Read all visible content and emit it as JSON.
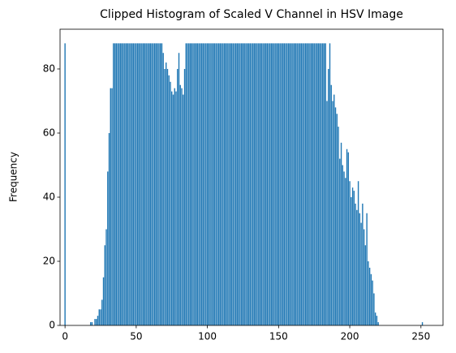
{
  "chart_data": {
    "type": "bar",
    "title": "Clipped Histogram of Scaled V Channel in HSV Image",
    "ylabel": "Frequency",
    "color": "#1f77b4",
    "bar_width": 0.8,
    "xlim": [
      -3.5,
      265.5
    ],
    "ylim": [
      0,
      92.4
    ],
    "xticks": [
      0,
      50,
      100,
      150,
      200,
      250
    ],
    "yticks": [
      0,
      20,
      40,
      60,
      80
    ],
    "x": [
      0,
      1,
      2,
      3,
      4,
      5,
      6,
      7,
      8,
      9,
      10,
      11,
      12,
      13,
      14,
      15,
      16,
      17,
      18,
      19,
      20,
      21,
      22,
      23,
      24,
      25,
      26,
      27,
      28,
      29,
      30,
      31,
      32,
      33,
      34,
      35,
      36,
      37,
      38,
      39,
      40,
      41,
      42,
      43,
      44,
      45,
      46,
      47,
      48,
      49,
      50,
      51,
      52,
      53,
      54,
      55,
      56,
      57,
      58,
      59,
      60,
      61,
      62,
      63,
      64,
      65,
      66,
      67,
      68,
      69,
      70,
      71,
      72,
      73,
      74,
      75,
      76,
      77,
      78,
      79,
      80,
      81,
      82,
      83,
      84,
      85,
      86,
      87,
      88,
      89,
      90,
      91,
      92,
      93,
      94,
      95,
      96,
      97,
      98,
      99,
      100,
      101,
      102,
      103,
      104,
      105,
      106,
      107,
      108,
      109,
      110,
      111,
      112,
      113,
      114,
      115,
      116,
      117,
      118,
      119,
      120,
      121,
      122,
      123,
      124,
      125,
      126,
      127,
      128,
      129,
      130,
      131,
      132,
      133,
      134,
      135,
      136,
      137,
      138,
      139,
      140,
      141,
      142,
      143,
      144,
      145,
      146,
      147,
      148,
      149,
      150,
      151,
      152,
      153,
      154,
      155,
      156,
      157,
      158,
      159,
      160,
      161,
      162,
      163,
      164,
      165,
      166,
      167,
      168,
      169,
      170,
      171,
      172,
      173,
      174,
      175,
      176,
      177,
      178,
      179,
      180,
      181,
      182,
      183,
      184,
      185,
      186,
      187,
      188,
      189,
      190,
      191,
      192,
      193,
      194,
      195,
      196,
      197,
      198,
      199,
      200,
      201,
      202,
      203,
      204,
      205,
      206,
      207,
      208,
      209,
      210,
      211,
      212,
      213,
      214,
      215,
      216,
      217,
      218,
      219,
      220,
      221,
      222,
      223,
      224,
      225,
      226,
      227,
      228,
      229,
      230,
      231,
      232,
      233,
      234,
      235,
      236,
      237,
      238,
      239,
      240,
      241,
      242,
      243,
      244,
      245,
      246,
      247,
      248,
      249,
      250,
      251,
      252,
      253,
      254,
      255
    ],
    "values": [
      88,
      0,
      0,
      0,
      0,
      0,
      0,
      0,
      0,
      0,
      0,
      0,
      0,
      0,
      0,
      0,
      0,
      0,
      1,
      1,
      0,
      2,
      2,
      3,
      5,
      5,
      8,
      15,
      25,
      30,
      48,
      60,
      74,
      74,
      88,
      88,
      88,
      88,
      88,
      88,
      88,
      88,
      88,
      88,
      88,
      88,
      88,
      88,
      88,
      88,
      88,
      88,
      88,
      88,
      88,
      88,
      88,
      88,
      88,
      88,
      88,
      88,
      88,
      88,
      88,
      88,
      88,
      88,
      88,
      85,
      80,
      82,
      80,
      78,
      76,
      73,
      72,
      74,
      73,
      80,
      85,
      75,
      74,
      72,
      80,
      88,
      88,
      88,
      88,
      88,
      88,
      88,
      88,
      88,
      88,
      88,
      88,
      88,
      88,
      88,
      88,
      88,
      88,
      88,
      88,
      88,
      88,
      88,
      88,
      88,
      88,
      88,
      88,
      88,
      88,
      88,
      88,
      88,
      88,
      88,
      88,
      88,
      88,
      88,
      88,
      88,
      88,
      88,
      88,
      88,
      88,
      88,
      88,
      88,
      88,
      88,
      88,
      88,
      88,
      88,
      88,
      88,
      88,
      88,
      88,
      88,
      88,
      88,
      88,
      88,
      88,
      88,
      88,
      88,
      88,
      88,
      88,
      88,
      88,
      88,
      88,
      88,
      88,
      88,
      88,
      88,
      88,
      88,
      88,
      88,
      88,
      88,
      88,
      88,
      88,
      88,
      88,
      88,
      88,
      88,
      88,
      88,
      88,
      88,
      70,
      80,
      88,
      75,
      70,
      72,
      68,
      66,
      62,
      52,
      57,
      50,
      48,
      46,
      55,
      54,
      45,
      40,
      43,
      42,
      38,
      36,
      45,
      35,
      32,
      38,
      30,
      25,
      35,
      20,
      18,
      16,
      14,
      10,
      4,
      3,
      1,
      0,
      0,
      0,
      0,
      0,
      0,
      0,
      0,
      0,
      0,
      0,
      0,
      0,
      0,
      0,
      0,
      0,
      0,
      0,
      0,
      0,
      0,
      0,
      0,
      0,
      0,
      0,
      0,
      0,
      0,
      1,
      0,
      0,
      0,
      0
    ]
  }
}
